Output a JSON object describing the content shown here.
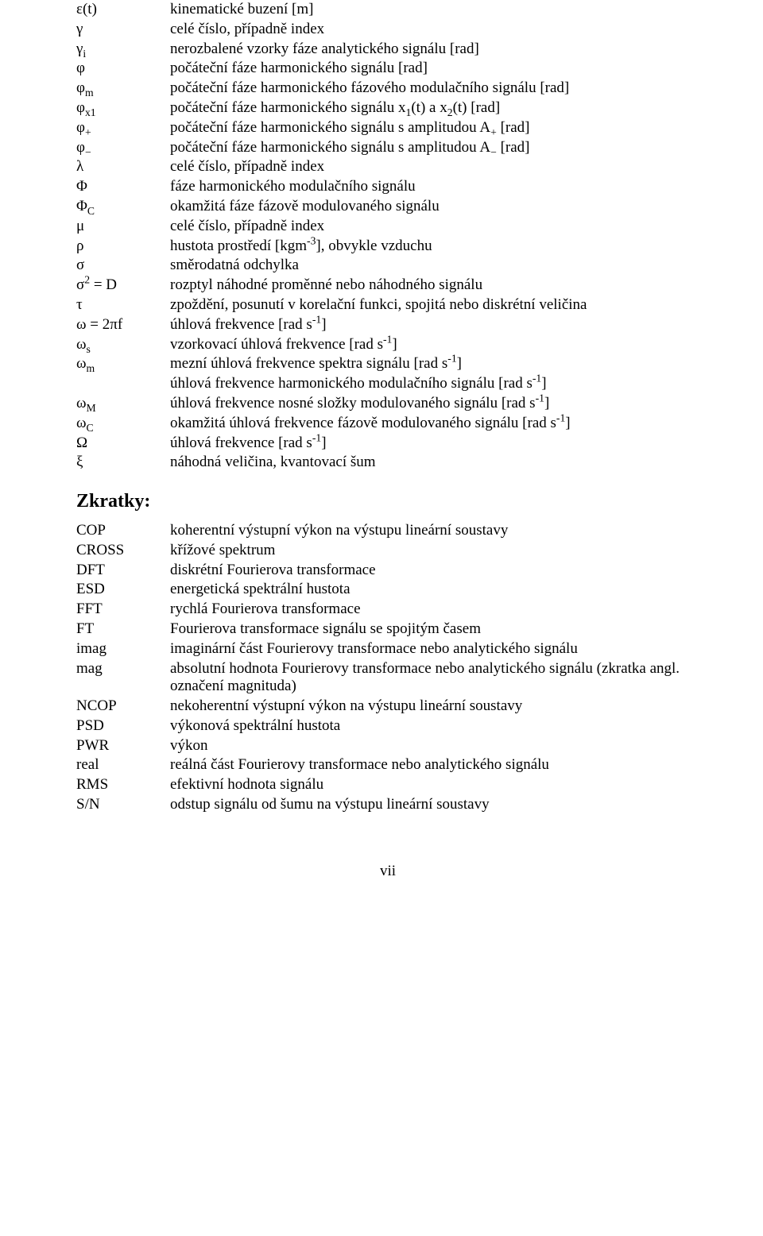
{
  "symbols": [
    {
      "sym": "ε(t)",
      "desc": "kinematické buzení [m]"
    },
    {
      "sym": "γ",
      "desc": "celé číslo, případně index"
    },
    {
      "sym_html": "γ<span class='sub'>i</span>",
      "desc": "nerozbalené vzorky fáze analytického signálu [rad]"
    },
    {
      "sym": "φ",
      "desc": "počáteční fáze harmonického signálu [rad]"
    },
    {
      "sym_html": "φ<span class='sub'>m</span>",
      "desc": "počáteční fáze harmonického fázového modulačního signálu [rad]"
    },
    {
      "sym_html": "φ<span class='sub'>x1</span>",
      "desc_html": "počáteční fáze harmonického signálu x<span class='sub'>1</span>(t) a x<span class='sub'>2</span>(t) [rad]"
    },
    {
      "sym_html": "φ<span class='sub'>+</span>",
      "desc_html": "počáteční fáze harmonického signálu s amplitudou A<span class='sub'>+</span> [rad]"
    },
    {
      "sym_html": "φ<span class='sub'>−</span>",
      "desc_html": "počáteční fáze harmonického signálu s amplitudou A<span class='sub'>−</span> [rad]"
    },
    {
      "sym": "λ",
      "desc": "celé číslo, případně index"
    },
    {
      "sym": "Φ",
      "desc": "fáze harmonického modulačního signálu"
    },
    {
      "sym_html": "Φ<span class='sub'>C</span>",
      "desc": "okamžitá fáze fázově modulovaného signálu"
    },
    {
      "sym": "μ",
      "desc": "celé číslo, případně index"
    },
    {
      "sym": "ρ",
      "desc_html": "hustota prostředí [kgm<span class='sup'>-3</span>], obvykle vzduchu"
    },
    {
      "sym": "σ",
      "desc": "směrodatná odchylka"
    },
    {
      "sym_html": "σ<span class='sup'>2</span> = D",
      "desc": "rozptyl náhodné proměnné nebo náhodného signálu"
    },
    {
      "sym": "τ",
      "desc": "zpoždění, posunutí v korelační funkci, spojitá nebo diskrétní veličina"
    },
    {
      "sym": "ω = 2πf",
      "desc_html": "úhlová frekvence [rad s<span class='sup'>-1</span>]"
    },
    {
      "sym_html": "ω<span class='sub'>s</span>",
      "desc_html": "vzorkovací úhlová frekvence [rad s<span class='sup'>-1</span>]"
    },
    {
      "sym_html": "ω<span class='sub'>m</span>",
      "desc_html": "mezní úhlová frekvence spektra signálu [rad s<span class='sup'>-1</span>]"
    },
    {
      "sym": "",
      "desc_html": "úhlová frekvence harmonického modulačního signálu [rad s<span class='sup'>-1</span>]"
    },
    {
      "sym_html": "ω<span class='sub'>M</span>",
      "desc_html": "úhlová frekvence nosné složky modulovaného signálu [rad s<span class='sup'>-1</span>]"
    },
    {
      "sym_html": "ω<span class='sub'>C</span>",
      "desc_html": "okamžitá úhlová frekvence fázově modulovaného signálu [rad s<span class='sup'>-1</span>]"
    },
    {
      "sym": "Ω",
      "desc_html": "úhlová frekvence [rad s<span class='sup'>-1</span>]"
    },
    {
      "sym": "ξ",
      "desc": "náhodná veličina, kvantovací šum"
    }
  ],
  "section_title": "Zkratky:",
  "abbr": [
    {
      "sym": "COP",
      "desc": "koherentní výstupní výkon na výstupu lineární soustavy"
    },
    {
      "sym": "CROSS",
      "desc": "křížové spektrum"
    },
    {
      "sym": "DFT",
      "desc": "diskrétní Fourierova transformace"
    },
    {
      "sym": "ESD",
      "desc": "energetická spektrální hustota"
    },
    {
      "sym": "FFT",
      "desc": "rychlá Fourierova transformace"
    },
    {
      "sym": "FT",
      "desc": "Fourierova transformace signálu se spojitým časem"
    },
    {
      "sym": "imag",
      "desc": "imaginární část Fourierovy transformace nebo analytického signálu"
    },
    {
      "sym": "mag",
      "desc": "absolutní hodnota Fourierovy transformace nebo analytického signálu (zkratka angl. označení magnituda)"
    },
    {
      "sym": "NCOP",
      "desc": "nekoherentní výstupní výkon na výstupu lineární soustavy"
    },
    {
      "sym": "PSD",
      "desc": "výkonová spektrální hustota"
    },
    {
      "sym": "PWR",
      "desc": "výkon"
    },
    {
      "sym": "real",
      "desc": "reálná část Fourierovy transformace nebo analytického signálu"
    },
    {
      "sym": "RMS",
      "desc": "efektivní hodnota signálu"
    },
    {
      "sym": "S/N",
      "desc": "odstup signálu od šumu na výstupu lineární soustavy"
    }
  ],
  "page_number": "vii"
}
